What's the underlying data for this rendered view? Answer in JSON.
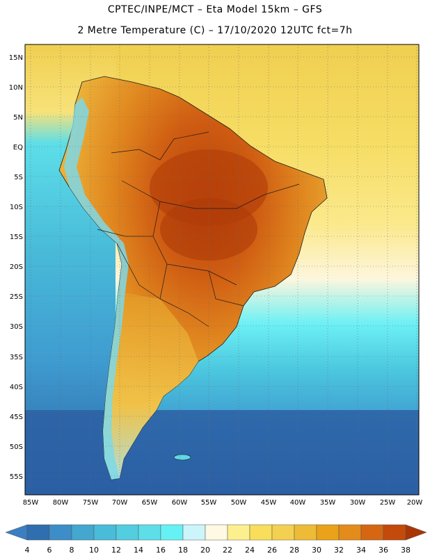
{
  "title_line1": "CPTEC/INPE/MCT –  Eta Model 15km – GFS",
  "title_line2": "2 Metre Temperature (C) – 17/10/2020 12UTC fct=7h",
  "lat_labels": [
    "15N",
    "10N",
    "5N",
    "EQ",
    "5S",
    "10S",
    "15S",
    "20S",
    "25S",
    "30S",
    "35S",
    "40S",
    "45S",
    "50S",
    "55S"
  ],
  "lon_labels": [
    "85W",
    "80W",
    "75W",
    "70W",
    "65W",
    "60W",
    "55W",
    "50W",
    "45W",
    "40W",
    "35W",
    "30W",
    "25W",
    "20W"
  ],
  "colorbar": {
    "ticks": [
      "4",
      "6",
      "8",
      "10",
      "12",
      "14",
      "16",
      "18",
      "20",
      "22",
      "24",
      "26",
      "28",
      "30",
      "32",
      "34",
      "36",
      "38"
    ],
    "colors": [
      "#3a7fc1",
      "#2f6faf",
      "#3d8ec8",
      "#43a7cf",
      "#49bcd9",
      "#53cde0",
      "#5ddee9",
      "#66f2f5",
      "#ccf4fb",
      "#fff8e3",
      "#fcef8e",
      "#f8de5a",
      "#f3d04f",
      "#edbb35",
      "#e9a219",
      "#e38b1b",
      "#d56612",
      "#c44a0b",
      "#aa3507"
    ]
  },
  "palette": {
    "ocean_south": "#2b5fa3",
    "ocean_mid": "#3f9cd0",
    "ocean_cool": "#55cfe4",
    "ocean_warm": "#f5dd60",
    "ocean_tropic": "#f0cf50",
    "land_hot": "#bf4a0f",
    "land_warm": "#dc7e1e",
    "land_mild": "#e8a22c",
    "andes": "#7ed8e8",
    "border": "#1a1a1a"
  }
}
